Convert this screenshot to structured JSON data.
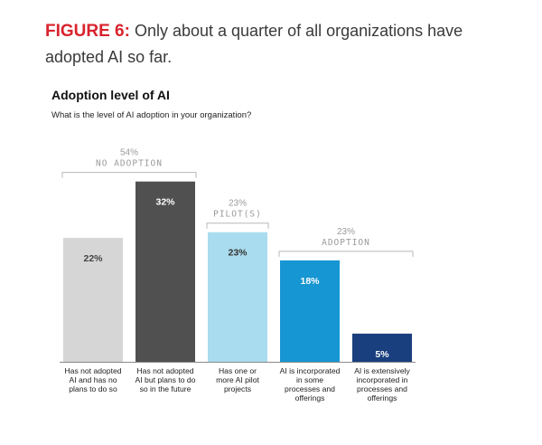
{
  "figure": {
    "label": "FIGURE 6:",
    "caption": "Only about a quarter of all organizations have adopted AI so far."
  },
  "chart_data": {
    "type": "bar",
    "title": "Adoption level of AI",
    "subtitle": "What is the level of AI adoption in your organization?",
    "categories": [
      "Has not adopted AI and has no plans to do so",
      "Has not adopted AI but plans to do so in the future",
      "Has one or more AI pilot projects",
      "AI is incorporated in some processes and offerings",
      "AI is extensively incorporated in processes and offerings"
    ],
    "category_lines": [
      [
        "Has not adopted",
        "AI and has no",
        "plans to do so"
      ],
      [
        "Has not adopted",
        "AI but plans to do",
        "so in the future"
      ],
      [
        "Has one or",
        "more AI pilot",
        "projects"
      ],
      [
        "AI is incorporated",
        "in some",
        "processes and",
        "offerings"
      ],
      [
        "AI is extensively",
        "incorporated in",
        "processes and",
        "offerings"
      ]
    ],
    "values": [
      22,
      32,
      23,
      18,
      5
    ],
    "value_labels": [
      "22%",
      "32%",
      "23%",
      "18%",
      "5%"
    ],
    "colors": [
      "#d6d6d6",
      "#505050",
      "#a9dcee",
      "#1696d2",
      "#1a3f7e"
    ],
    "label_colors": [
      "#444444",
      "#ffffff",
      "#333333",
      "#ffffff",
      "#ffffff"
    ],
    "ylim": [
      0,
      35
    ],
    "groups": [
      {
        "pct": "54%",
        "name": "NO ADOPTION",
        "from": 0,
        "to": 1
      },
      {
        "pct": "23%",
        "name": "PILOT(S)",
        "from": 2,
        "to": 2
      },
      {
        "pct": "23%",
        "name": "ADOPTION",
        "from": 3,
        "to": 4
      }
    ]
  }
}
